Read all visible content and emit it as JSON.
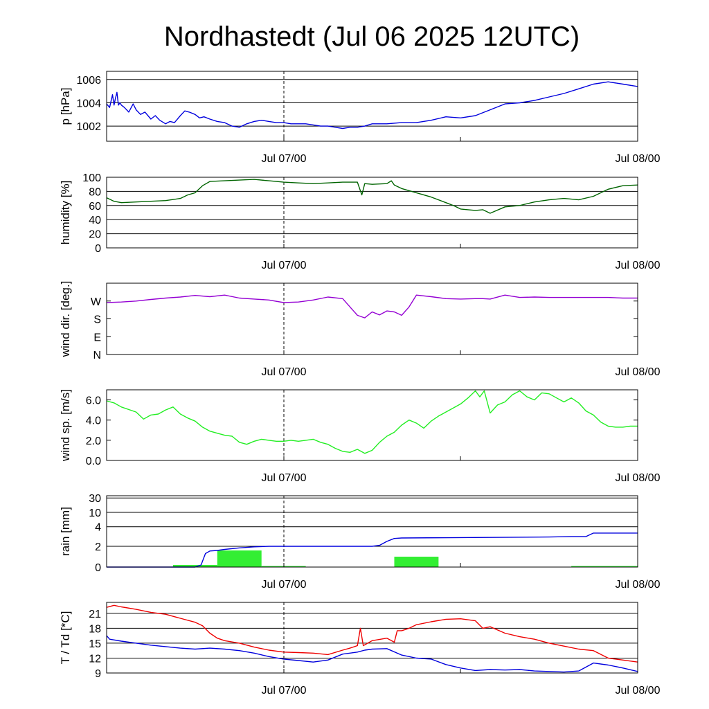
{
  "title": "Nordhastedt (Jul 06 2025 12UTC)",
  "colors": {
    "pressure": "#0000dd",
    "humidity": "#006400",
    "wind_dir": "#9400d3",
    "wind_speed": "#22ee22",
    "rain_bars": "#33ee33",
    "rain_total": "#0000dd",
    "temperature": "#ee0000",
    "dewpoint": "#0000dd"
  },
  "chart_data": [
    {
      "type": "line",
      "ylabel": "p [hPa]",
      "x_tick_labels": [
        "Jul 07/00",
        "Jul 08/00"
      ],
      "xlim": [
        0,
        36
      ],
      "ylim": [
        1000.7,
        1006.7
      ],
      "yticks": [
        {
          "v": 1002,
          "label": "1002"
        },
        {
          "v": 1004,
          "label": "1004"
        },
        {
          "v": 1006,
          "label": "1006"
        }
      ],
      "grid": true,
      "series": [
        {
          "color": "#0000dd",
          "x": [
            0,
            0.2,
            0.4,
            0.5,
            0.6,
            0.7,
            0.8,
            0.9,
            1,
            1.2,
            1.5,
            1.8,
            2,
            2.3,
            2.6,
            3,
            3.3,
            3.6,
            4,
            4.3,
            4.6,
            5,
            5.3,
            5.6,
            6,
            6.3,
            6.6,
            7,
            7.5,
            8,
            8.5,
            9,
            9.5,
            10,
            10.5,
            11,
            11.5,
            12,
            12.5,
            13,
            13.5,
            14,
            14.5,
            15,
            15.5,
            16,
            16.5,
            17,
            17.5,
            18,
            19,
            20,
            21,
            22,
            23,
            24,
            25,
            26,
            27,
            28,
            29,
            30,
            31,
            32,
            33,
            34,
            35,
            36
          ],
          "y": [
            1003.9,
            1003.6,
            1004.7,
            1003.8,
            1004.4,
            1004.9,
            1003.8,
            1004.0,
            1003.8,
            1003.6,
            1003.2,
            1003.9,
            1003.4,
            1003.0,
            1003.2,
            1002.6,
            1002.9,
            1002.5,
            1002.2,
            1002.4,
            1002.3,
            1002.9,
            1003.3,
            1003.2,
            1003.0,
            1002.7,
            1002.8,
            1002.6,
            1002.4,
            1002.3,
            1002.0,
            1001.9,
            1002.2,
            1002.4,
            1002.5,
            1002.4,
            1002.3,
            1002.3,
            1002.2,
            1002.2,
            1002.2,
            1002.1,
            1002.0,
            1002.0,
            1001.9,
            1001.8,
            1001.9,
            1001.9,
            1002.0,
            1002.2,
            1002.2,
            1002.3,
            1002.3,
            1002.5,
            1002.8,
            1002.7,
            1002.9,
            1003.4,
            1003.9,
            1004.0,
            1004.2,
            1004.5,
            1004.8,
            1005.2,
            1005.6,
            1005.8,
            1005.6,
            1005.4
          ]
        }
      ]
    },
    {
      "type": "line",
      "ylabel": "humidity [%]",
      "x_tick_labels": [
        "Jul 07/00",
        "Jul 08/00"
      ],
      "xlim": [
        0,
        36
      ],
      "ylim": [
        0,
        100
      ],
      "yticks": [
        {
          "v": 0,
          "label": "0"
        },
        {
          "v": 20,
          "label": "20"
        },
        {
          "v": 40,
          "label": "40"
        },
        {
          "v": 60,
          "label": "60"
        },
        {
          "v": 80,
          "label": "80"
        },
        {
          "v": 100,
          "label": "100"
        }
      ],
      "grid": true,
      "series": [
        {
          "color": "#006400",
          "x": [
            0,
            0.5,
            1,
            2,
            3,
            4,
            5,
            5.5,
            6,
            6.5,
            7,
            8,
            9,
            10,
            11,
            12,
            13,
            14,
            15,
            16,
            17,
            17.3,
            17.5,
            18,
            19,
            19.3,
            19.5,
            20,
            21,
            22,
            23,
            23.5,
            24,
            24.5,
            25,
            25.5,
            26,
            27,
            28,
            29,
            30,
            31,
            32,
            33,
            34,
            35,
            36
          ],
          "y": [
            71,
            66,
            64,
            65,
            66,
            67,
            70,
            75,
            78,
            88,
            94,
            95,
            96,
            97,
            95,
            93,
            92,
            91,
            92,
            93,
            93,
            75,
            91,
            90,
            91,
            95,
            89,
            84,
            78,
            72,
            64,
            60,
            55,
            54,
            53,
            54,
            49,
            58,
            60,
            65,
            68,
            70,
            68,
            73,
            83,
            88,
            89
          ]
        }
      ]
    },
    {
      "type": "line",
      "ylabel": "wind dir. [deg.]",
      "x_tick_labels": [
        "Jul 07/00",
        "Jul 08/00"
      ],
      "xlim": [
        0,
        36
      ],
      "ylim": [
        0,
        360
      ],
      "yticks": [
        {
          "v": 0,
          "label": "N"
        },
        {
          "v": 90,
          "label": "E"
        },
        {
          "v": 180,
          "label": "S"
        },
        {
          "v": 270,
          "label": "W"
        }
      ],
      "grid": false,
      "series": [
        {
          "color": "#9400d3",
          "x": [
            0,
            1,
            2,
            3,
            4,
            5,
            6,
            7,
            8,
            9,
            10,
            11,
            12,
            13,
            14,
            15,
            16,
            16.5,
            17,
            17.5,
            18,
            18.5,
            19,
            19.5,
            20,
            20.5,
            21,
            22,
            23,
            24,
            25,
            25.5,
            26,
            27,
            28,
            29,
            30,
            31,
            32,
            33,
            34,
            35,
            36
          ],
          "y": [
            262,
            265,
            270,
            278,
            285,
            290,
            298,
            292,
            300,
            285,
            280,
            275,
            262,
            265,
            275,
            290,
            282,
            240,
            198,
            185,
            215,
            200,
            220,
            215,
            198,
            240,
            300,
            292,
            282,
            280,
            282,
            282,
            280,
            300,
            288,
            290,
            288,
            288,
            288,
            288,
            288,
            285,
            285
          ]
        }
      ]
    },
    {
      "type": "line",
      "ylabel": "wind sp. [m/s]",
      "x_tick_labels": [
        "Jul 07/00",
        "Jul 08/00"
      ],
      "xlim": [
        0,
        36
      ],
      "ylim": [
        0,
        7
      ],
      "yticks": [
        {
          "v": 0,
          "label": "0.0"
        },
        {
          "v": 2,
          "label": "2.0"
        },
        {
          "v": 4,
          "label": "4.0"
        },
        {
          "v": 6,
          "label": "6.0"
        }
      ],
      "grid": false,
      "series": [
        {
          "color": "#22ee22",
          "x": [
            0,
            0.5,
            1,
            2,
            2.5,
            3,
            3.5,
            4,
            4.5,
            5,
            5.5,
            6,
            6.5,
            7,
            7.5,
            8,
            8.5,
            9,
            9.5,
            10,
            10.5,
            11,
            11.5,
            12,
            12.5,
            13,
            13.5,
            14,
            14.5,
            15,
            15.5,
            16,
            16.5,
            17,
            17.5,
            18,
            18.5,
            19,
            19.5,
            20,
            20.5,
            21,
            21.5,
            22,
            22.5,
            23,
            23.5,
            24,
            24.5,
            25,
            25.3,
            25.6,
            26,
            26.5,
            27,
            27.5,
            28,
            28.5,
            29,
            29.5,
            30,
            30.5,
            31,
            31.5,
            32,
            32.5,
            33,
            33.5,
            34,
            34.5,
            35,
            35.5,
            36
          ],
          "y": [
            5.9,
            5.7,
            5.3,
            4.8,
            4.1,
            4.5,
            4.6,
            5.0,
            5.3,
            4.6,
            4.2,
            3.9,
            3.3,
            2.9,
            2.7,
            2.5,
            2.4,
            1.8,
            1.6,
            1.9,
            2.1,
            2.0,
            1.9,
            1.9,
            2.0,
            1.9,
            2.0,
            2.1,
            1.8,
            1.6,
            1.2,
            0.9,
            0.8,
            1.1,
            0.7,
            1.0,
            1.8,
            2.4,
            2.8,
            3.5,
            4.0,
            3.7,
            3.2,
            3.9,
            4.4,
            4.8,
            5.2,
            5.6,
            6.2,
            6.9,
            6.3,
            6.9,
            4.7,
            5.5,
            5.8,
            6.5,
            6.9,
            6.3,
            6.0,
            6.7,
            6.6,
            6.2,
            5.8,
            6.2,
            5.7,
            4.9,
            4.5,
            3.8,
            3.4,
            3.3,
            3.3,
            3.4,
            3.4
          ]
        }
      ]
    },
    {
      "type": "bar",
      "ylabel": "rain [mm]",
      "x_tick_labels": [
        "Jul 07/00",
        "Jul 08/00"
      ],
      "xlim": [
        0,
        36
      ],
      "yscale": "nonlinear",
      "yticks": [
        {
          "v": 0,
          "label": "0"
        },
        {
          "v": 2,
          "label": "2"
        },
        {
          "v": 4,
          "label": "4"
        },
        {
          "v": 10,
          "label": "10"
        },
        {
          "v": 30,
          "label": "30"
        }
      ],
      "grid": true,
      "bars": [
        {
          "x0": 4.5,
          "x1": 7.5,
          "value": 0.2
        },
        {
          "x0": 7.5,
          "x1": 10.5,
          "value": 1.6
        },
        {
          "x0": 10.5,
          "x1": 13.5,
          "value": 0.1
        },
        {
          "x0": 19.5,
          "x1": 22.5,
          "value": 1.0
        },
        {
          "x0": 31.5,
          "x1": 36,
          "value": 0.1
        }
      ],
      "series": [
        {
          "name": "accumulated",
          "color": "#0000dd",
          "x": [
            0,
            6,
            6.4,
            6.7,
            7,
            7.5,
            8,
            9,
            10,
            11,
            12,
            16,
            18,
            18.5,
            19,
            19.5,
            20,
            25,
            30,
            31.5,
            32.5,
            33,
            36
          ],
          "y": [
            0,
            0,
            0.2,
            1.3,
            1.55,
            1.6,
            1.7,
            1.85,
            1.95,
            2.0,
            2.0,
            2.0,
            2.0,
            2.1,
            2.5,
            2.8,
            2.85,
            2.9,
            2.95,
            3.0,
            3.0,
            3.35,
            3.35
          ]
        }
      ]
    },
    {
      "type": "line",
      "ylabel": "T / Td [*C]",
      "x_tick_labels": [
        "Jul 07/00",
        "Jul 08/00"
      ],
      "xlim": [
        0,
        36
      ],
      "ylim": [
        9,
        23.2
      ],
      "yticks": [
        {
          "v": 9,
          "label": "9"
        },
        {
          "v": 12,
          "label": "12"
        },
        {
          "v": 15,
          "label": "15"
        },
        {
          "v": 18,
          "label": "18"
        },
        {
          "v": 21,
          "label": "21"
        }
      ],
      "grid": true,
      "series": [
        {
          "name": "T",
          "color": "#ee0000",
          "x": [
            0,
            0.5,
            1,
            2,
            3,
            4,
            5,
            6,
            6.5,
            7,
            7.5,
            8,
            9,
            10,
            11,
            12,
            13,
            14,
            15,
            16,
            16.5,
            17,
            17.2,
            17.4,
            18,
            19,
            19.5,
            19.7,
            20,
            20.5,
            21,
            22,
            23,
            24,
            25,
            25.5,
            26,
            27,
            28,
            29,
            30,
            31,
            32,
            33,
            34,
            35,
            36
          ],
          "y": [
            22.2,
            22.6,
            22.3,
            21.8,
            21.2,
            20.8,
            20.0,
            19.2,
            18.5,
            17.0,
            16.0,
            15.5,
            15.0,
            14.2,
            13.6,
            13.2,
            13.1,
            13.0,
            12.7,
            13.6,
            14.0,
            14.5,
            18.0,
            14.5,
            15.5,
            16.0,
            15.2,
            17.5,
            17.5,
            18.0,
            18.7,
            19.3,
            19.8,
            19.9,
            19.5,
            18.0,
            18.3,
            17.0,
            16.3,
            15.8,
            15.0,
            14.4,
            13.8,
            13.5,
            12.0,
            11.6,
            11.2
          ]
        },
        {
          "name": "Td",
          "color": "#0000dd",
          "x": [
            0,
            0.2,
            1,
            2,
            3,
            4,
            5,
            6,
            7,
            8,
            9,
            10,
            11,
            12,
            13,
            14,
            15,
            16,
            17,
            17.5,
            18,
            19,
            20,
            21,
            22,
            23,
            24,
            25,
            26,
            27,
            28,
            29,
            30,
            31,
            32,
            33,
            34,
            35,
            36
          ],
          "y": [
            16.5,
            15.8,
            15.4,
            15.0,
            14.6,
            14.3,
            14.0,
            13.8,
            14.0,
            13.8,
            13.5,
            13.0,
            12.3,
            11.8,
            11.5,
            11.2,
            11.6,
            12.8,
            13.2,
            13.6,
            13.8,
            13.9,
            12.6,
            12.0,
            11.8,
            10.7,
            10.0,
            9.5,
            9.7,
            9.6,
            9.7,
            9.4,
            9.3,
            9.2,
            9.4,
            11.0,
            10.6,
            10.0,
            9.3
          ]
        }
      ]
    }
  ]
}
